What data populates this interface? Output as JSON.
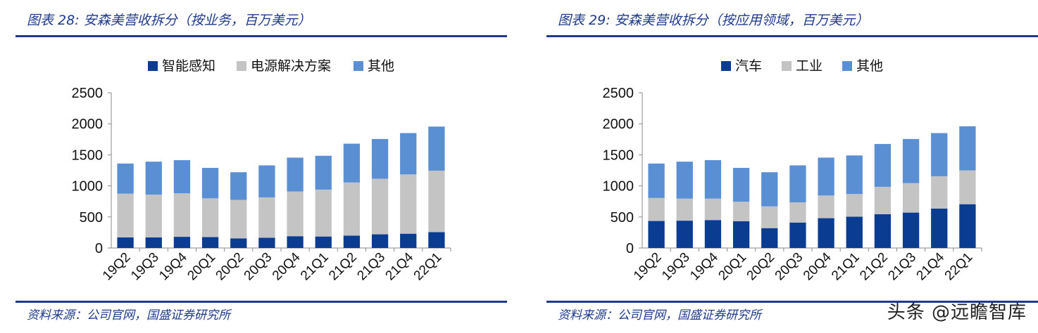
{
  "panels": [
    {
      "title": "图表 28:  安森美营收拆分（按业务，百万美元）",
      "source": "资料来源：公司官网，国盛证券研究所"
    },
    {
      "title": "图表 29:  安森美营收拆分（按应用领域，百万美元）",
      "source": "资料来源：公司官网，国盛证券研究所"
    }
  ],
  "watermark": "头条 @远瞻智库",
  "chart_data": [
    {
      "type": "bar",
      "stacked": true,
      "categories": [
        "19Q2",
        "19Q3",
        "19Q4",
        "20Q1",
        "20Q2",
        "20Q3",
        "20Q4",
        "21Q1",
        "21Q2",
        "21Q3",
        "21Q4",
        "22Q1"
      ],
      "series": [
        {
          "name": "智能感知",
          "color": "#0a3d91",
          "values": [
            170,
            170,
            180,
            175,
            155,
            165,
            190,
            185,
            200,
            220,
            230,
            255
          ]
        },
        {
          "name": "电源解决方案",
          "color": "#c4c4c4",
          "values": [
            705,
            690,
            700,
            625,
            620,
            650,
            720,
            755,
            855,
            895,
            955,
            990
          ]
        },
        {
          "name": "其他",
          "color": "#5b8fd4",
          "values": [
            485,
            530,
            535,
            490,
            445,
            515,
            545,
            545,
            625,
            640,
            665,
            710
          ]
        }
      ],
      "ylim": [
        0,
        2500
      ],
      "yticks": [
        0,
        500,
        1000,
        1500,
        2000,
        2500
      ],
      "legend": "top-center",
      "grid": false
    },
    {
      "type": "bar",
      "stacked": true,
      "categories": [
        "19Q2",
        "19Q3",
        "19Q4",
        "20Q1",
        "20Q2",
        "20Q3",
        "20Q4",
        "21Q1",
        "21Q2",
        "21Q3",
        "21Q4",
        "22Q1"
      ],
      "series": [
        {
          "name": "汽车",
          "color": "#0a3d91",
          "values": [
            435,
            440,
            450,
            430,
            320,
            410,
            480,
            505,
            545,
            570,
            635,
            705
          ]
        },
        {
          "name": "工业",
          "color": "#c4c4c4",
          "values": [
            370,
            355,
            345,
            315,
            350,
            325,
            365,
            365,
            440,
            475,
            520,
            545
          ]
        },
        {
          "name": "其他",
          "color": "#5b8fd4",
          "values": [
            555,
            595,
            620,
            545,
            550,
            595,
            610,
            620,
            690,
            710,
            695,
            710
          ]
        }
      ],
      "ylim": [
        0,
        2500
      ],
      "yticks": [
        0,
        500,
        1000,
        1500,
        2000,
        2500
      ],
      "legend": "top-center",
      "grid": false
    }
  ]
}
